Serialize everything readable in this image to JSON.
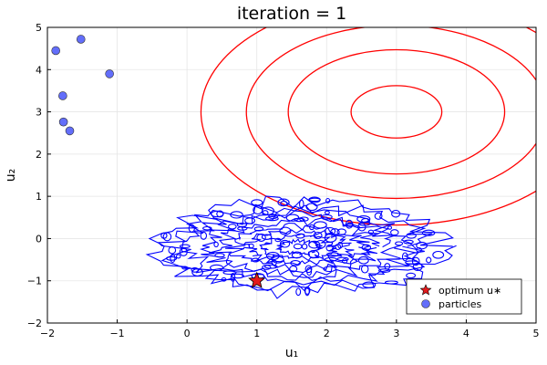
{
  "chart_data": {
    "type": "scatter",
    "title": "iteration = 1",
    "xlabel": "u₁",
    "ylabel": "u₂",
    "xlim": [
      -2,
      5
    ],
    "ylim": [
      -2,
      5
    ],
    "x_ticks": [
      -2,
      -1,
      0,
      1,
      2,
      3,
      4,
      5
    ],
    "y_ticks": [
      -2,
      -1,
      0,
      1,
      2,
      3,
      4,
      5
    ],
    "grid": true,
    "legend_position": "bottom-right",
    "series": [
      {
        "name": "optimum u∗",
        "marker": "star",
        "color": "#e41a1c",
        "points": [
          [
            1.0,
            -1.0
          ]
        ]
      },
      {
        "name": "particles",
        "marker": "circle",
        "color": "#636efa",
        "points": [
          [
            -1.88,
            4.45
          ],
          [
            -1.52,
            4.72
          ],
          [
            -1.11,
            3.9
          ],
          [
            -1.78,
            3.38
          ],
          [
            -1.77,
            2.76
          ],
          [
            -1.68,
            2.55
          ]
        ]
      }
    ],
    "contours": [
      {
        "color": "#ff0000",
        "center": [
          3.0,
          3.0
        ],
        "radii": [
          [
            0.65,
            0.62
          ],
          [
            1.55,
            1.47
          ],
          [
            2.15,
            2.05
          ],
          [
            2.8,
            2.68
          ]
        ]
      },
      {
        "color": "#0000ff",
        "type": "noisy-contours",
        "center": [
          1.6,
          -0.2
        ],
        "extent": [
          [
            -0.5,
            2.7
          ],
          [
            -1.7,
            0.95
          ]
        ]
      }
    ]
  }
}
